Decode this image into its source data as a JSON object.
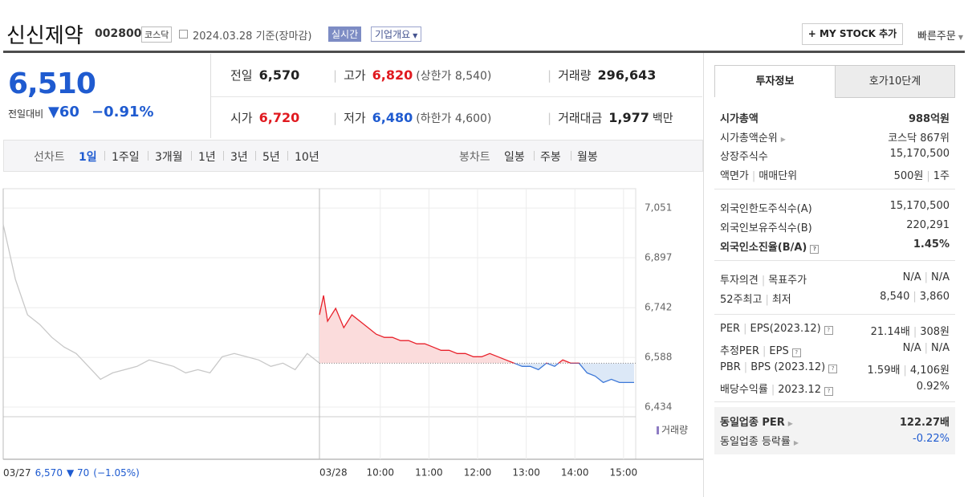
{
  "header": {
    "name": "신신제약",
    "code": "002800",
    "market": "코스닥",
    "date": "2024.03.28 기준(장마감)",
    "realtime": "실시간",
    "company_info": "기업개요",
    "my_stock": "+ MY STOCK 추가",
    "quick_order": "빠른주문"
  },
  "quote": {
    "price": "6,510",
    "change_label": "전일대비",
    "change": "▼60",
    "change_pct": "−0.91%",
    "items": [
      {
        "label": "전일",
        "value": "6,570"
      },
      {
        "label": "고가",
        "value": "6,820",
        "sub": "(상한가 8,540)"
      },
      {
        "label": "거래량",
        "value": "296,643"
      },
      {
        "label": "시가",
        "value": "6,720"
      },
      {
        "label": "저가",
        "value": "6,480",
        "sub": "(하한가 4,600)"
      },
      {
        "label": "거래대금",
        "value": "1,977",
        "unit": "백만"
      }
    ]
  },
  "periods": {
    "line_label": "선차트",
    "line": [
      "1일",
      "1주일",
      "3개월",
      "1년",
      "3년",
      "5년",
      "10년"
    ],
    "candle_label": "봉차트",
    "candle": [
      "일봉",
      "주봉",
      "월봉"
    ]
  },
  "info_panel": {
    "tabs": [
      "투자정보",
      "호가10단계"
    ],
    "sections": [
      [
        {
          "labels": [
            "시가총액"
          ],
          "values": [
            "988억원"
          ]
        },
        {
          "labels": [
            "시가총액순위"
          ],
          "values": [
            "코스닥 867위"
          ]
        },
        {
          "labels": [
            "상장주식수"
          ],
          "values": [
            "15,170,500"
          ]
        },
        {
          "labels": [
            "액면가",
            "매매단위"
          ],
          "values": [
            "500원",
            "1주"
          ]
        }
      ],
      [
        {
          "labels": [
            "외국인한도주식수(A)"
          ],
          "values": [
            "15,170,500"
          ]
        },
        {
          "labels": [
            "외국인보유주식수(B)"
          ],
          "values": [
            "220,291"
          ]
        },
        {
          "labels": [
            "외국인소진율(B/A)"
          ],
          "values": [
            "1.45%"
          ]
        }
      ],
      [
        {
          "labels": [
            "투자의견",
            "목표주가"
          ],
          "values": [
            "N/A",
            "N/A"
          ]
        },
        {
          "labels": [
            "52주최고",
            "최저"
          ],
          "values": [
            "8,540",
            "3,860"
          ]
        }
      ],
      [
        {
          "labels": [
            "PER",
            "EPS(2023.12)"
          ],
          "values": [
            "21.14배",
            "308원"
          ]
        },
        {
          "labels": [
            "추정PER",
            "EPS"
          ],
          "values": [
            "N/A",
            "N/A"
          ]
        },
        {
          "labels": [
            "PBR",
            "BPS (2023.12)"
          ],
          "values": [
            "1.59배",
            "4,106원"
          ]
        },
        {
          "labels": [
            "배당수익률",
            "2023.12"
          ],
          "values": [
            "0.92%"
          ]
        }
      ],
      [
        {
          "labels": [
            "동일업종 PER"
          ],
          "values": [
            "122.27배"
          ]
        },
        {
          "labels": [
            "동일업종 등락률"
          ],
          "values": [
            "-0.22%"
          ]
        }
      ]
    ]
  },
  "chart_data": {
    "type": "line",
    "xlim": [
      0,
      780
    ],
    "ylim": [
      6404,
      7111
    ],
    "xticks": [
      {
        "value": 0,
        "label": "03/27"
      },
      {
        "value": 390,
        "label": "03/28"
      },
      {
        "value": 465,
        "label": "10:00"
      },
      {
        "value": 525,
        "label": "11:00"
      },
      {
        "value": 585,
        "label": "12:00"
      },
      {
        "value": 645,
        "label": "13:00"
      },
      {
        "value": 705,
        "label": "14:00"
      },
      {
        "value": 765,
        "label": "15:00"
      }
    ],
    "yticks": [
      {
        "value": 7051,
        "label": "7,051"
      },
      {
        "value": 6897,
        "label": "6,897"
      },
      {
        "value": 6742,
        "label": "6,742"
      },
      {
        "value": 6588,
        "label": "6,588"
      },
      {
        "value": 6434,
        "label": "6,434"
      }
    ],
    "grid": true,
    "reference": 6570,
    "series": [
      {
        "color": "#c8c8c8",
        "x": [
          0,
          15,
          30,
          45,
          60,
          75,
          90,
          105,
          120,
          135,
          150,
          165,
          180,
          195,
          210,
          225,
          240,
          255,
          270,
          285,
          300,
          315,
          330,
          345,
          360,
          375,
          390
        ],
        "values": [
          7000,
          6830,
          6720,
          6690,
          6650,
          6620,
          6600,
          6560,
          6520,
          6540,
          6550,
          6560,
          6580,
          6570,
          6560,
          6540,
          6550,
          6540,
          6590,
          6600,
          6590,
          6580,
          6560,
          6570,
          6550,
          6600,
          6570
        ]
      },
      {
        "color": "#e8202a",
        "color_below": "#3d78d8",
        "fill": "#fbdcdc",
        "fill_below": "#dce8f7",
        "x": [
          390,
          395,
          400,
          410,
          420,
          430,
          440,
          450,
          460,
          470,
          480,
          490,
          500,
          510,
          520,
          530,
          540,
          550,
          560,
          570,
          580,
          590,
          600,
          610,
          620,
          630,
          640,
          650,
          660,
          670,
          680,
          690,
          700,
          710,
          720,
          730,
          740,
          750,
          760,
          770,
          778
        ],
        "values": [
          6720,
          6780,
          6700,
          6740,
          6680,
          6720,
          6700,
          6680,
          6660,
          6650,
          6650,
          6640,
          6640,
          6630,
          6630,
          6620,
          6610,
          6610,
          6600,
          6600,
          6590,
          6590,
          6600,
          6590,
          6580,
          6570,
          6560,
          6560,
          6550,
          6570,
          6560,
          6580,
          6570,
          6570,
          6540,
          6530,
          6510,
          6520,
          6510,
          6510,
          6510
        ]
      }
    ],
    "volume_label": "거래량",
    "footer": {
      "date": "03/27",
      "price": "6,570",
      "change": "▼ 70",
      "pct": "(−1.05%)"
    }
  }
}
